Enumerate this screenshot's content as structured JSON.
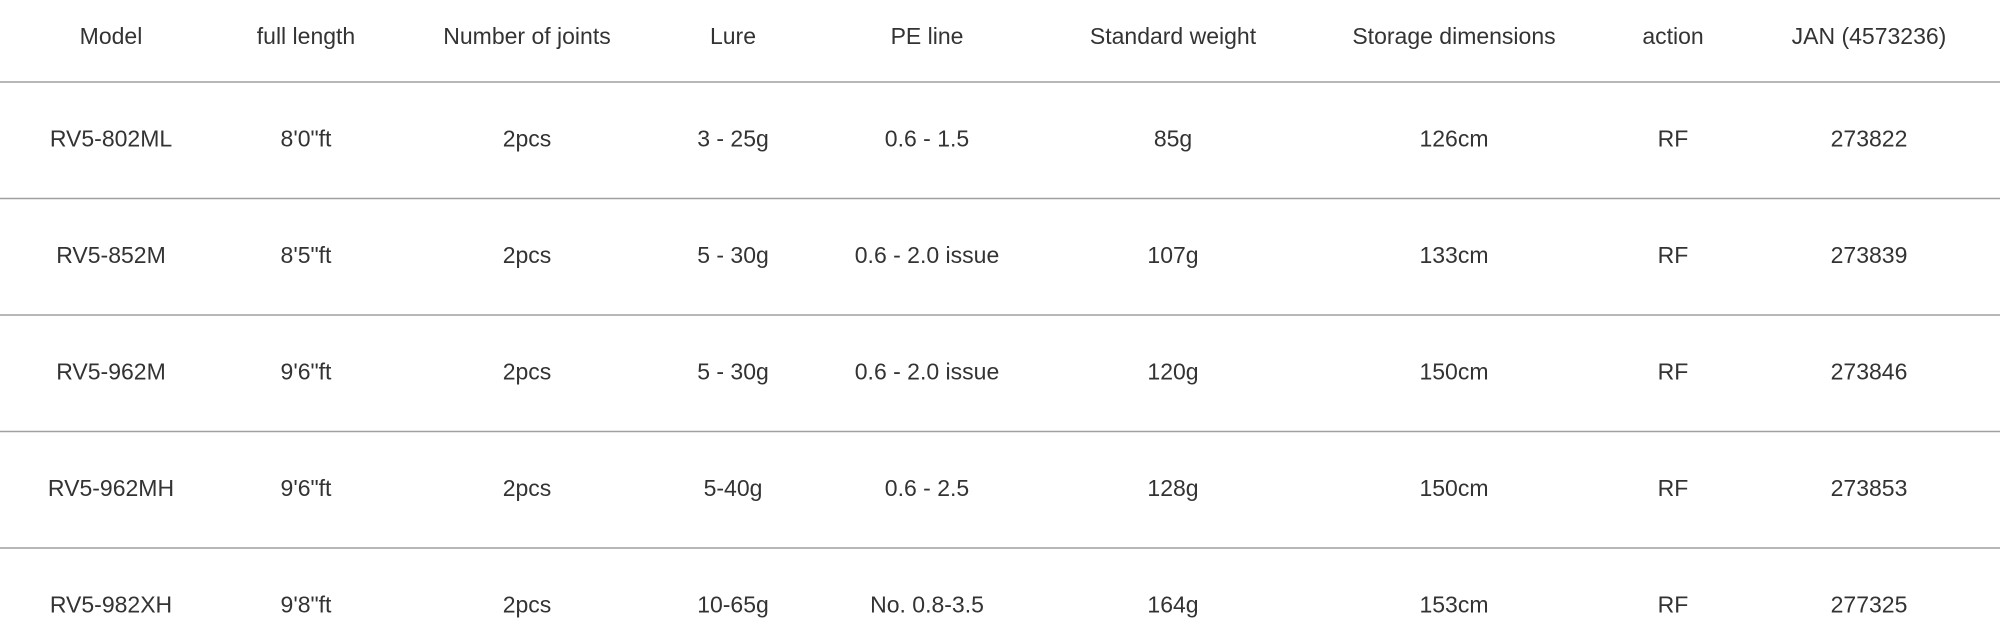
{
  "table": {
    "header": [
      "Model",
      "full length",
      "Number of joints",
      "Lure",
      "PE line",
      "Standard weight",
      "Storage dimensions",
      "action",
      "JAN (4573236)"
    ],
    "rows": [
      [
        "RV5-802ML",
        "8'0\"ft",
        "2pcs",
        "3 - 25g",
        "0.6 - 1.5",
        "85g",
        "126cm",
        "RF",
        "273822"
      ],
      [
        "RV5-852M",
        "8'5\"ft",
        "2pcs",
        "5 - 30g",
        "0.6 - 2.0 issue",
        "107g",
        "133cm",
        "RF",
        "273839"
      ],
      [
        "RV5-962M",
        "9'6\"ft",
        "2pcs",
        "5 - 30g",
        "0.6 - 2.0 issue",
        "120g",
        "150cm",
        "RF",
        "273846"
      ],
      [
        "RV5-962MH",
        "9'6\"ft",
        "2pcs",
        "5-40g",
        "0.6 - 2.5",
        "128g",
        "150cm",
        "RF",
        "273853"
      ],
      [
        "RV5-982XH",
        "9'8\"ft",
        "2pcs",
        "10-65g",
        "No. 0.8-3.5",
        "164g",
        "153cm",
        "RF",
        "277325"
      ]
    ]
  }
}
